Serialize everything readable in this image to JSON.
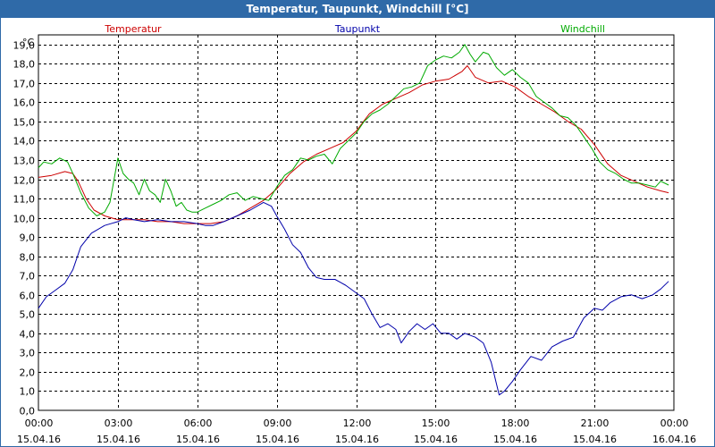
{
  "window": {
    "title": "Temperatur, Taupunkt, Windchill [°C]"
  },
  "chart_data": {
    "type": "line",
    "title": "Temperatur, Taupunkt, Windchill [°C]",
    "ylabel": "°C",
    "ylim": [
      0,
      19.5
    ],
    "yticks": [
      0,
      1,
      2,
      3,
      4,
      5,
      6,
      7,
      8,
      9,
      10,
      11,
      12,
      13,
      14,
      15,
      16,
      17,
      18,
      19
    ],
    "ytick_labels": [
      "0,0",
      "1,0",
      "2,0",
      "3,0",
      "4,0",
      "5,0",
      "6,0",
      "7,0",
      "8,0",
      "9,0",
      "10,0",
      "11,0",
      "12,0",
      "13,0",
      "14,0",
      "15,0",
      "16,0",
      "17,0",
      "18,0",
      "19,0"
    ],
    "xlim": [
      0,
      24
    ],
    "xticks": [
      0,
      3,
      6,
      9,
      12,
      15,
      18,
      21,
      24
    ],
    "xtick_labels": [
      [
        "00:00",
        "15.04.16"
      ],
      [
        "03:00",
        "15.04.16"
      ],
      [
        "06:00",
        "15.04.16"
      ],
      [
        "09:00",
        "15.04.16"
      ],
      [
        "12:00",
        "15.04.16"
      ],
      [
        "15:00",
        "15.04.16"
      ],
      [
        "18:00",
        "15.04.16"
      ],
      [
        "21:00",
        "15.04.16"
      ],
      [
        "00:00",
        "16.04.16"
      ]
    ],
    "grid": true,
    "legend_position": "top",
    "series": [
      {
        "name": "Temperatur",
        "color": "#cc0000",
        "points": [
          [
            0,
            12.1
          ],
          [
            0.5,
            12.2
          ],
          [
            1.0,
            12.4
          ],
          [
            1.3,
            12.3
          ],
          [
            1.5,
            11.9
          ],
          [
            1.8,
            11.0
          ],
          [
            2.1,
            10.4
          ],
          [
            2.5,
            10.1
          ],
          [
            3.0,
            9.9
          ],
          [
            3.5,
            9.9
          ],
          [
            4.0,
            9.9
          ],
          [
            4.5,
            9.8
          ],
          [
            5.0,
            9.8
          ],
          [
            5.5,
            9.7
          ],
          [
            6.0,
            9.7
          ],
          [
            6.5,
            9.7
          ],
          [
            7.0,
            9.8
          ],
          [
            7.5,
            10.1
          ],
          [
            8.0,
            10.5
          ],
          [
            8.5,
            10.9
          ],
          [
            9.0,
            11.5
          ],
          [
            9.5,
            12.3
          ],
          [
            10.0,
            12.9
          ],
          [
            10.5,
            13.3
          ],
          [
            11.0,
            13.6
          ],
          [
            11.5,
            13.9
          ],
          [
            12.0,
            14.5
          ],
          [
            12.5,
            15.4
          ],
          [
            13.0,
            15.9
          ],
          [
            13.5,
            16.2
          ],
          [
            14.0,
            16.5
          ],
          [
            14.5,
            16.9
          ],
          [
            15.0,
            17.1
          ],
          [
            15.5,
            17.2
          ],
          [
            16.0,
            17.6
          ],
          [
            16.2,
            17.9
          ],
          [
            16.5,
            17.3
          ],
          [
            17.0,
            17.0
          ],
          [
            17.5,
            17.1
          ],
          [
            18.0,
            16.8
          ],
          [
            18.5,
            16.3
          ],
          [
            19.0,
            15.9
          ],
          [
            19.5,
            15.5
          ],
          [
            20.0,
            15.0
          ],
          [
            20.5,
            14.6
          ],
          [
            21.0,
            13.8
          ],
          [
            21.5,
            12.8
          ],
          [
            22.0,
            12.2
          ],
          [
            22.5,
            11.9
          ],
          [
            23.0,
            11.6
          ],
          [
            23.5,
            11.4
          ],
          [
            23.8,
            11.3
          ]
        ]
      },
      {
        "name": "Taupunkt",
        "color": "#0000aa",
        "points": [
          [
            0,
            5.3
          ],
          [
            0.3,
            5.9
          ],
          [
            0.6,
            6.2
          ],
          [
            1.0,
            6.6
          ],
          [
            1.3,
            7.3
          ],
          [
            1.6,
            8.5
          ],
          [
            2.0,
            9.2
          ],
          [
            2.5,
            9.6
          ],
          [
            3.0,
            9.8
          ],
          [
            3.3,
            10.0
          ],
          [
            3.6,
            9.9
          ],
          [
            4.0,
            9.8
          ],
          [
            4.5,
            9.9
          ],
          [
            5.0,
            9.8
          ],
          [
            5.5,
            9.8
          ],
          [
            6.0,
            9.7
          ],
          [
            6.3,
            9.6
          ],
          [
            6.6,
            9.6
          ],
          [
            7.0,
            9.8
          ],
          [
            7.5,
            10.1
          ],
          [
            8.0,
            10.4
          ],
          [
            8.5,
            10.8
          ],
          [
            8.8,
            10.6
          ],
          [
            9.0,
            10.1
          ],
          [
            9.3,
            9.4
          ],
          [
            9.6,
            8.6
          ],
          [
            9.9,
            8.2
          ],
          [
            10.2,
            7.4
          ],
          [
            10.5,
            6.9
          ],
          [
            10.8,
            6.8
          ],
          [
            11.2,
            6.8
          ],
          [
            11.6,
            6.5
          ],
          [
            12.0,
            6.1
          ],
          [
            12.3,
            5.8
          ],
          [
            12.6,
            5.0
          ],
          [
            12.9,
            4.3
          ],
          [
            13.2,
            4.5
          ],
          [
            13.5,
            4.2
          ],
          [
            13.7,
            3.5
          ],
          [
            14.0,
            4.1
          ],
          [
            14.3,
            4.5
          ],
          [
            14.6,
            4.2
          ],
          [
            14.9,
            4.5
          ],
          [
            15.2,
            4.0
          ],
          [
            15.5,
            4.0
          ],
          [
            15.8,
            3.7
          ],
          [
            16.1,
            4.0
          ],
          [
            16.5,
            3.8
          ],
          [
            16.8,
            3.5
          ],
          [
            17.1,
            2.5
          ],
          [
            17.4,
            0.8
          ],
          [
            17.6,
            1.0
          ],
          [
            17.9,
            1.5
          ],
          [
            18.2,
            2.1
          ],
          [
            18.6,
            2.8
          ],
          [
            19.0,
            2.6
          ],
          [
            19.4,
            3.3
          ],
          [
            19.8,
            3.6
          ],
          [
            20.2,
            3.8
          ],
          [
            20.6,
            4.8
          ],
          [
            21.0,
            5.3
          ],
          [
            21.3,
            5.2
          ],
          [
            21.6,
            5.6
          ],
          [
            22.0,
            5.9
          ],
          [
            22.4,
            6.0
          ],
          [
            22.8,
            5.8
          ],
          [
            23.2,
            6.0
          ],
          [
            23.5,
            6.3
          ],
          [
            23.8,
            6.7
          ]
        ]
      },
      {
        "name": "Windchill",
        "color": "#00aa00",
        "points": [
          [
            0,
            12.6
          ],
          [
            0.2,
            12.9
          ],
          [
            0.5,
            12.8
          ],
          [
            0.8,
            13.1
          ],
          [
            1.1,
            12.9
          ],
          [
            1.3,
            12.3
          ],
          [
            1.6,
            11.3
          ],
          [
            1.9,
            10.5
          ],
          [
            2.2,
            10.1
          ],
          [
            2.5,
            10.3
          ],
          [
            2.7,
            10.8
          ],
          [
            3.0,
            13.1
          ],
          [
            3.2,
            12.3
          ],
          [
            3.4,
            12.0
          ],
          [
            3.6,
            11.8
          ],
          [
            3.8,
            11.2
          ],
          [
            4.0,
            12.0
          ],
          [
            4.2,
            11.4
          ],
          [
            4.4,
            11.2
          ],
          [
            4.6,
            10.8
          ],
          [
            4.8,
            12.0
          ],
          [
            5.0,
            11.4
          ],
          [
            5.2,
            10.6
          ],
          [
            5.4,
            10.8
          ],
          [
            5.6,
            10.4
          ],
          [
            5.8,
            10.3
          ],
          [
            6.0,
            10.3
          ],
          [
            6.3,
            10.5
          ],
          [
            6.6,
            10.7
          ],
          [
            6.9,
            10.9
          ],
          [
            7.2,
            11.2
          ],
          [
            7.5,
            11.3
          ],
          [
            7.8,
            10.9
          ],
          [
            8.1,
            11.1
          ],
          [
            8.4,
            11.0
          ],
          [
            8.7,
            10.9
          ],
          [
            9.0,
            11.6
          ],
          [
            9.3,
            12.2
          ],
          [
            9.6,
            12.5
          ],
          [
            9.9,
            13.1
          ],
          [
            10.2,
            13.0
          ],
          [
            10.5,
            13.2
          ],
          [
            10.8,
            13.3
          ],
          [
            11.1,
            12.8
          ],
          [
            11.4,
            13.6
          ],
          [
            11.7,
            14.0
          ],
          [
            12.0,
            14.4
          ],
          [
            12.3,
            15.0
          ],
          [
            12.6,
            15.4
          ],
          [
            12.9,
            15.6
          ],
          [
            13.2,
            15.9
          ],
          [
            13.5,
            16.3
          ],
          [
            13.8,
            16.7
          ],
          [
            14.1,
            16.8
          ],
          [
            14.4,
            17.0
          ],
          [
            14.7,
            17.9
          ],
          [
            15.0,
            18.2
          ],
          [
            15.3,
            18.4
          ],
          [
            15.6,
            18.3
          ],
          [
            15.9,
            18.6
          ],
          [
            16.1,
            19.0
          ],
          [
            16.3,
            18.5
          ],
          [
            16.5,
            18.1
          ],
          [
            16.8,
            18.6
          ],
          [
            17.0,
            18.5
          ],
          [
            17.3,
            17.8
          ],
          [
            17.6,
            17.4
          ],
          [
            17.9,
            17.7
          ],
          [
            18.2,
            17.3
          ],
          [
            18.5,
            17.0
          ],
          [
            18.8,
            16.3
          ],
          [
            19.1,
            16.0
          ],
          [
            19.4,
            15.7
          ],
          [
            19.7,
            15.3
          ],
          [
            20.0,
            15.2
          ],
          [
            20.3,
            14.8
          ],
          [
            20.6,
            14.2
          ],
          [
            20.9,
            13.6
          ],
          [
            21.2,
            12.9
          ],
          [
            21.5,
            12.5
          ],
          [
            21.8,
            12.3
          ],
          [
            22.1,
            12.0
          ],
          [
            22.4,
            11.8
          ],
          [
            22.7,
            11.8
          ],
          [
            23.0,
            11.7
          ],
          [
            23.3,
            11.6
          ],
          [
            23.5,
            11.9
          ],
          [
            23.8,
            11.7
          ]
        ]
      }
    ]
  }
}
